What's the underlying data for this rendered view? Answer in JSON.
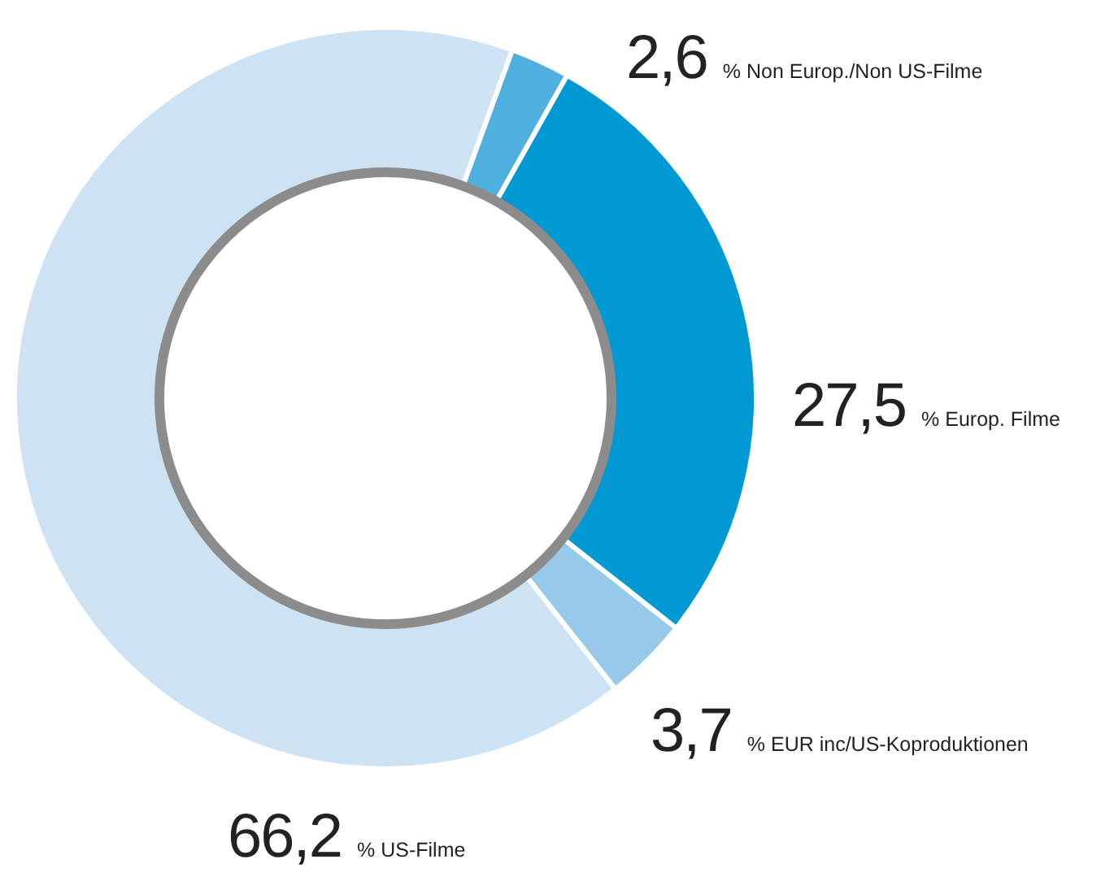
{
  "chart_data": {
    "type": "donut",
    "categories": [
      "Non Europ./Non US-Filme",
      "Europ. Filme",
      "EUR inc/US-Koproduktionen",
      "US-Filme"
    ],
    "values": [
      2.6,
      27.5,
      3.7,
      66.2
    ],
    "colors": [
      "#4fb0e0",
      "#0099d4",
      "#96c9ea",
      "#cde3f3"
    ],
    "value_labels": [
      "2,6 %",
      "27,5 %",
      "3,7 %",
      "66,2 %"
    ],
    "legend": false
  }
}
